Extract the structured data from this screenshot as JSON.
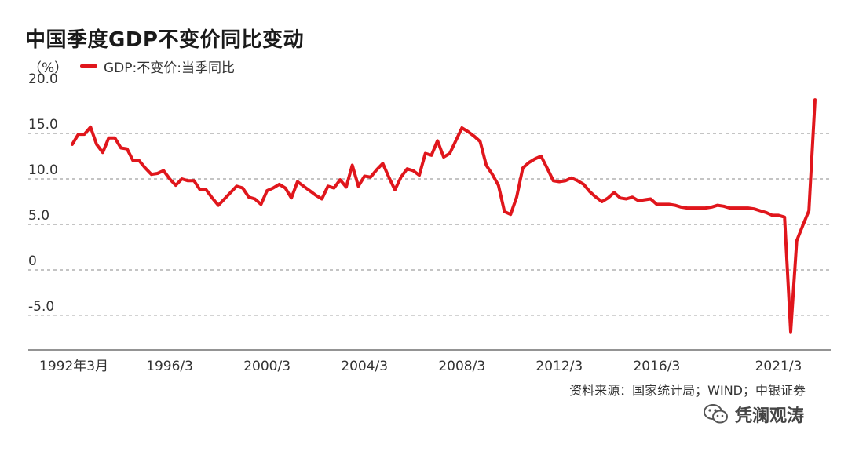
{
  "chart_data": {
    "type": "line",
    "title": "中国季度GDP不变价同比变动",
    "unit_label": "（%）",
    "legend_position": "top-left",
    "series": [
      {
        "name": "GDP:不变价:当季同比",
        "color": "#e0161c",
        "values": [
          [
            1992.0,
            13.8
          ],
          [
            1992.25,
            14.9
          ],
          [
            1992.5,
            14.9
          ],
          [
            1992.75,
            15.7
          ],
          [
            1993.0,
            13.8
          ],
          [
            1993.25,
            12.9
          ],
          [
            1993.5,
            14.5
          ],
          [
            1993.75,
            14.5
          ],
          [
            1994.0,
            13.4
          ],
          [
            1994.25,
            13.3
          ],
          [
            1994.5,
            12.0
          ],
          [
            1994.75,
            12.0
          ],
          [
            1995.0,
            11.2
          ],
          [
            1995.25,
            10.5
          ],
          [
            1995.5,
            10.6
          ],
          [
            1995.75,
            10.9
          ],
          [
            1996.0,
            10.0
          ],
          [
            1996.25,
            9.3
          ],
          [
            1996.5,
            10.0
          ],
          [
            1996.75,
            9.8
          ],
          [
            1997.0,
            9.8
          ],
          [
            1997.25,
            8.8
          ],
          [
            1997.5,
            8.8
          ],
          [
            1997.75,
            7.9
          ],
          [
            1998.0,
            7.1
          ],
          [
            1998.25,
            7.8
          ],
          [
            1998.5,
            8.5
          ],
          [
            1998.75,
            9.2
          ],
          [
            1999.0,
            9.0
          ],
          [
            1999.25,
            8.0
          ],
          [
            1999.5,
            7.8
          ],
          [
            1999.75,
            7.2
          ],
          [
            2000.0,
            8.7
          ],
          [
            2000.25,
            9.0
          ],
          [
            2000.5,
            9.4
          ],
          [
            2000.75,
            9.0
          ],
          [
            2001.0,
            7.9
          ],
          [
            2001.25,
            9.7
          ],
          [
            2001.5,
            9.2
          ],
          [
            2001.75,
            8.7
          ],
          [
            2002.0,
            8.2
          ],
          [
            2002.25,
            7.8
          ],
          [
            2002.5,
            9.2
          ],
          [
            2002.75,
            9.0
          ],
          [
            2003.0,
            9.9
          ],
          [
            2003.25,
            9.1
          ],
          [
            2003.5,
            11.5
          ],
          [
            2003.75,
            9.2
          ],
          [
            2004.0,
            10.3
          ],
          [
            2004.25,
            10.2
          ],
          [
            2004.5,
            11.0
          ],
          [
            2004.75,
            11.7
          ],
          [
            2005.0,
            10.2
          ],
          [
            2005.25,
            8.8
          ],
          [
            2005.5,
            10.2
          ],
          [
            2005.75,
            11.1
          ],
          [
            2006.0,
            10.9
          ],
          [
            2006.25,
            10.4
          ],
          [
            2006.5,
            12.8
          ],
          [
            2006.75,
            12.6
          ],
          [
            2007.0,
            14.2
          ],
          [
            2007.25,
            12.4
          ],
          [
            2007.5,
            12.8
          ],
          [
            2007.75,
            14.2
          ],
          [
            2008.0,
            15.6
          ],
          [
            2008.25,
            15.2
          ],
          [
            2008.5,
            14.7
          ],
          [
            2008.75,
            14.1
          ],
          [
            2009.0,
            11.5
          ],
          [
            2009.25,
            10.5
          ],
          [
            2009.5,
            9.3
          ],
          [
            2009.75,
            6.4
          ],
          [
            2010.0,
            6.1
          ],
          [
            2010.25,
            8.0
          ],
          [
            2010.5,
            11.2
          ],
          [
            2010.75,
            11.8
          ],
          [
            2011.0,
            12.2
          ],
          [
            2011.25,
            12.5
          ],
          [
            2011.5,
            11.2
          ],
          [
            2011.75,
            9.8
          ],
          [
            2012.0,
            9.7
          ],
          [
            2012.25,
            9.8
          ],
          [
            2012.5,
            10.1
          ],
          [
            2012.75,
            9.8
          ],
          [
            2013.0,
            9.4
          ],
          [
            2013.25,
            8.6
          ],
          [
            2013.5,
            8.0
          ],
          [
            2013.75,
            7.5
          ],
          [
            2014.0,
            7.9
          ],
          [
            2014.25,
            8.5
          ],
          [
            2014.5,
            7.9
          ],
          [
            2014.75,
            7.8
          ],
          [
            2015.0,
            8.0
          ],
          [
            2015.25,
            7.6
          ],
          [
            2015.5,
            7.7
          ],
          [
            2015.75,
            7.8
          ],
          [
            2016.0,
            7.2
          ],
          [
            2016.25,
            7.2
          ],
          [
            2016.5,
            7.2
          ],
          [
            2016.75,
            7.1
          ],
          [
            2017.0,
            6.9
          ],
          [
            2017.25,
            6.8
          ],
          [
            2017.5,
            6.8
          ],
          [
            2017.75,
            6.8
          ],
          [
            2018.0,
            6.8
          ],
          [
            2018.25,
            6.9
          ],
          [
            2018.5,
            7.1
          ],
          [
            2018.75,
            7.0
          ],
          [
            2019.0,
            6.8
          ],
          [
            2019.25,
            6.8
          ],
          [
            2019.5,
            6.8
          ],
          [
            2019.75,
            6.8
          ],
          [
            2020.0,
            6.7
          ],
          [
            2020.25,
            6.5
          ],
          [
            2020.5,
            6.3
          ],
          [
            2020.75,
            6.0
          ],
          [
            2021.0,
            6.0
          ],
          [
            2021.25,
            5.8
          ],
          [
            2021.5,
            -6.8
          ],
          [
            2021.75,
            3.2
          ],
          [
            2022.0,
            4.9
          ],
          [
            2022.25,
            6.5
          ],
          [
            2022.5,
            18.7
          ]
        ]
      }
    ],
    "x_tick_labels": [
      {
        "x": 1992.0,
        "label": "1992年3月"
      },
      {
        "x": 1996.0,
        "label": "1996/3"
      },
      {
        "x": 2000.0,
        "label": "2000/3"
      },
      {
        "x": 2004.0,
        "label": "2004/3"
      },
      {
        "x": 2008.0,
        "label": "2008/3"
      },
      {
        "x": 2012.0,
        "label": "2012/3"
      },
      {
        "x": 2016.0,
        "label": "2016/3"
      },
      {
        "x": 2021.0,
        "label": "2021/3"
      }
    ],
    "y_ticks": [
      {
        "value": 20,
        "label": "20.0"
      },
      {
        "value": 15,
        "label": "15.0"
      },
      {
        "value": 10,
        "label": "10.0"
      },
      {
        "value": 5,
        "label": "5.0"
      },
      {
        "value": 0,
        "label": "0"
      },
      {
        "value": -5,
        "label": "-5.0"
      }
    ],
    "ylim": [
      -8.8,
      20.0
    ],
    "xlim": [
      1992.0,
      2022.5
    ],
    "grid": "horizontal dashed",
    "source": "资料来源：国家统计局；WIND；中银证券",
    "watermark": "凭澜观涛",
    "watermark_icon": "wechat-icon"
  }
}
